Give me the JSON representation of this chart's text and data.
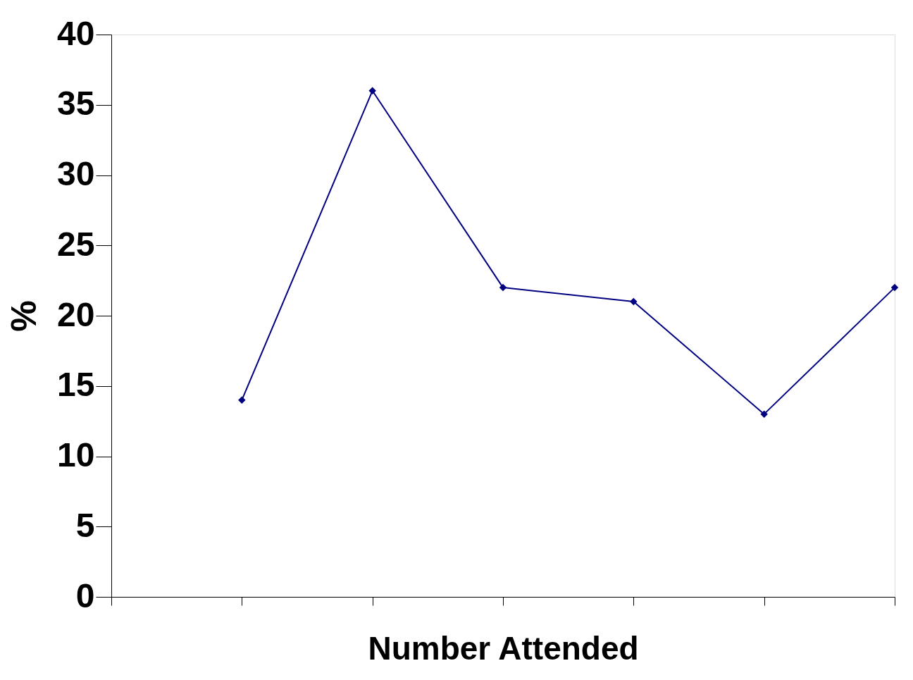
{
  "chart_data": {
    "type": "line",
    "xlabel": "Number Attended",
    "ylabel": "%",
    "categories": [
      null,
      null,
      null,
      null,
      null,
      null,
      null
    ],
    "series": [
      {
        "color": "#000080",
        "values": [
          null,
          14,
          36,
          22,
          21,
          13,
          22
        ]
      }
    ],
    "ylim": [
      0,
      40
    ],
    "yticks": [
      0,
      5,
      10,
      15,
      20,
      25,
      30,
      35,
      40
    ],
    "marker": "diamond",
    "line_style": "solid",
    "grid": false,
    "tick_labels": "y"
  }
}
